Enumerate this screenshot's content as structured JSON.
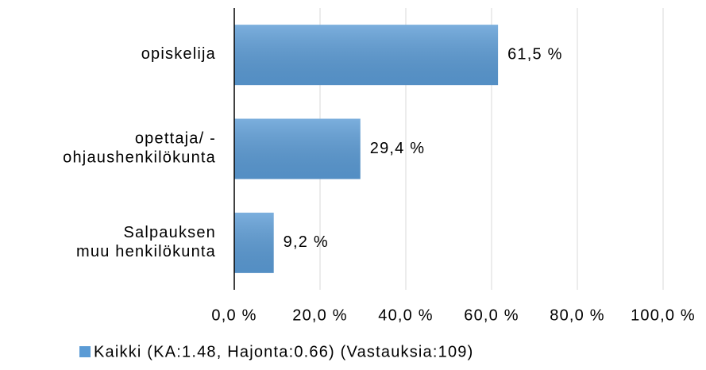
{
  "chart_data": {
    "type": "bar",
    "orientation": "horizontal",
    "categories": [
      "opiskelija",
      "opettaja/ -\nohjaushenkilökunta",
      "Salpauksen\nmuu henkilökunta"
    ],
    "series": [
      {
        "name": "Kaikki (KA:1.48, Hajonta:0.66) (Vastauksia:109)",
        "color": "#5b9bd5",
        "values": [
          61.5,
          29.4,
          9.2
        ],
        "value_labels": [
          "61,5 %",
          "29,4 %",
          "9,2 %"
        ]
      }
    ],
    "xlim": [
      0,
      100
    ],
    "xticks": [
      {
        "value": 0,
        "label": "0,0 %"
      },
      {
        "value": 20,
        "label": "20,0 %"
      },
      {
        "value": 40,
        "label": "40,0 %"
      },
      {
        "value": 60,
        "label": "60,0 %"
      },
      {
        "value": 80,
        "label": "80,0 %"
      },
      {
        "value": 100,
        "label": "100,0 %"
      }
    ],
    "grid": true,
    "legend": "bottom"
  }
}
